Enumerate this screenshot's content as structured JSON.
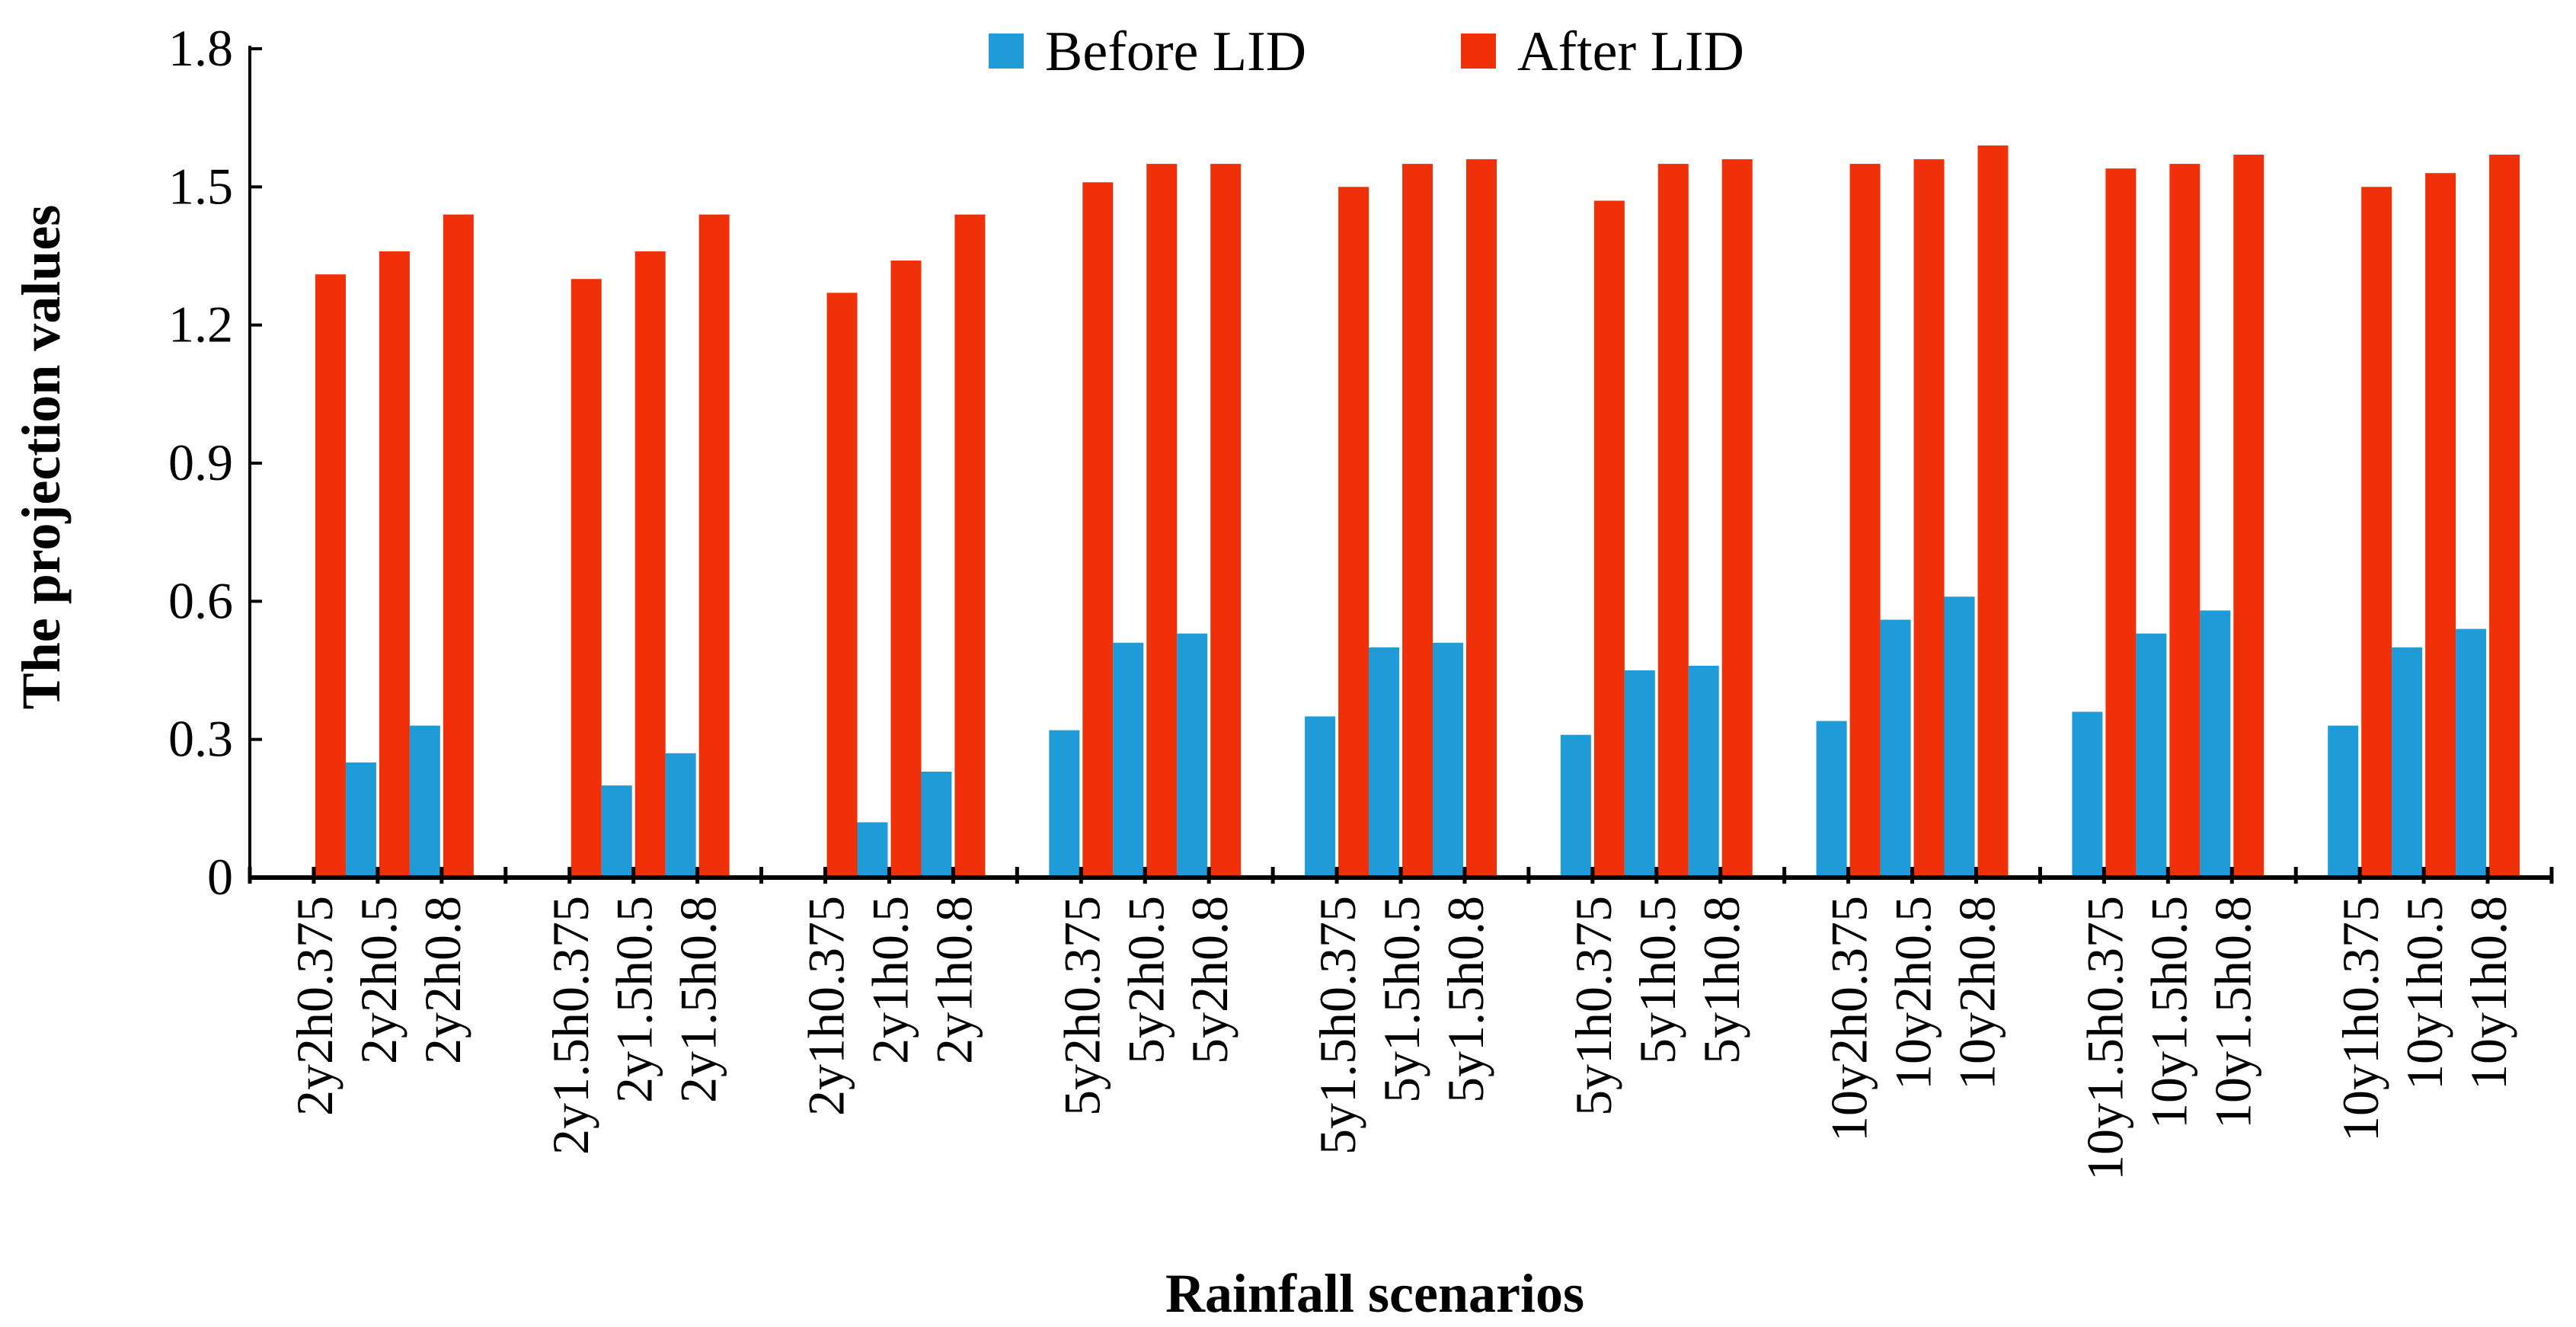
{
  "chart_data": {
    "type": "bar",
    "title": "",
    "xlabel": "Rainfall scenarios",
    "ylabel": "The projection values",
    "ylim": [
      0,
      1.8
    ],
    "yticks": [
      "0",
      "0.3",
      "0.6",
      "0.9",
      "1.2",
      "1.5",
      "1.8"
    ],
    "ytick_values": [
      0,
      0.3,
      0.6,
      0.9,
      1.2,
      1.5,
      1.8
    ],
    "grid": false,
    "legend_position": "top-center",
    "categories": [
      "2y2h0.375",
      "2y2h0.5",
      "2y2h0.8",
      "2y1.5h0.375",
      "2y1.5h0.5",
      "2y1.5h0.8",
      "2y1h0.375",
      "2y1h0.5",
      "2y1h0.8",
      "5y2h0.375",
      "5y2h0.5",
      "5y2h0.8",
      "5y1.5h0.375",
      "5y1.5h0.5",
      "5y1.5h0.8",
      "5y1h0.375",
      "5y1h0.5",
      "5y1h0.8",
      "10y2h0.375",
      "10y2h0.5",
      "10y2h0.8",
      "10y1.5h0.375",
      "10y1.5h0.5",
      "10y1.5h0.8",
      "10y1h0.375",
      "10y1h0.5",
      "10y1h0.8"
    ],
    "series": [
      {
        "name": "Before LID",
        "color": "#1f9bd7",
        "values": [
          0.0,
          0.25,
          0.33,
          0.0,
          0.2,
          0.27,
          0.0,
          0.12,
          0.23,
          0.32,
          0.51,
          0.53,
          0.35,
          0.5,
          0.51,
          0.31,
          0.45,
          0.46,
          0.34,
          0.56,
          0.61,
          0.36,
          0.53,
          0.58,
          0.33,
          0.5,
          0.54
        ]
      },
      {
        "name": "After LID",
        "color": "#f03008",
        "values": [
          1.31,
          1.36,
          1.44,
          1.3,
          1.36,
          1.44,
          1.27,
          1.34,
          1.44,
          1.51,
          1.55,
          1.55,
          1.5,
          1.55,
          1.56,
          1.47,
          1.55,
          1.56,
          1.55,
          1.56,
          1.59,
          1.54,
          1.55,
          1.57,
          1.5,
          1.53,
          1.57
        ]
      }
    ]
  }
}
